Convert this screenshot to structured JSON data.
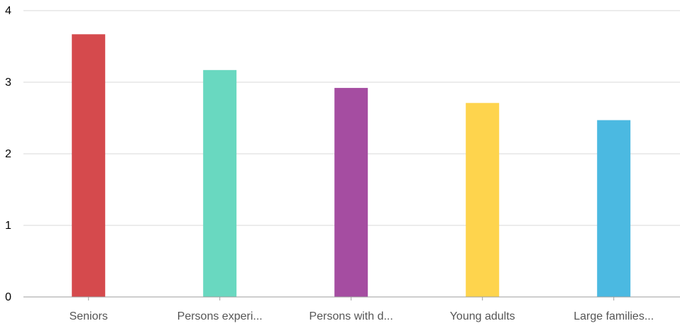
{
  "chart_data": {
    "type": "bar",
    "title": "",
    "xlabel": "",
    "ylabel": "",
    "categories": [
      "Seniors",
      "Persons experi...",
      "Persons with d...",
      "Young adults",
      "Large families..."
    ],
    "values": [
      3.67,
      3.17,
      2.92,
      2.71,
      2.47
    ],
    "colors": [
      "#d54a4d",
      "#69d8c0",
      "#a54da1",
      "#fed44d",
      "#4bb9e1"
    ],
    "ylim": [
      0,
      4
    ],
    "yticks": [
      "0",
      "1",
      "2",
      "3",
      "4"
    ],
    "grid": true,
    "legend": "none"
  }
}
